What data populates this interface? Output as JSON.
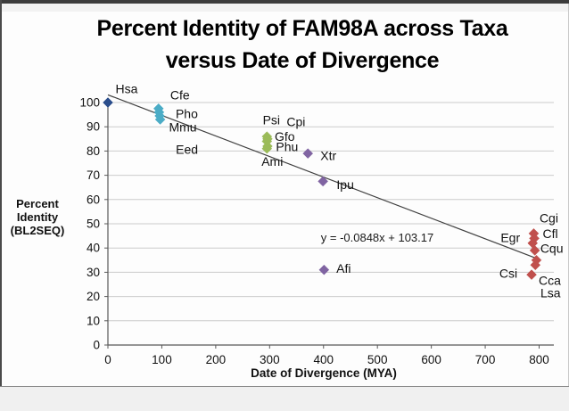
{
  "chart_data": {
    "type": "scatter",
    "title": "Percent Identity of FAM98A across Taxa versus Date of Divergence",
    "title_line1": "Percent Identity of FAM98A across Taxa",
    "title_line2": "versus Date of Divergence",
    "xlabel": "Date of Divergence (MYA)",
    "ylabel": "Percent Identity (BL2SEQ)",
    "ylabel_lines": [
      "Percent",
      "Identity",
      "(BL2SEQ)"
    ],
    "xlim": [
      0,
      800
    ],
    "ylim": [
      0,
      100
    ],
    "xticks": [
      0,
      100,
      200,
      300,
      400,
      500,
      600,
      700,
      800
    ],
    "yticks": [
      0,
      10,
      20,
      30,
      40,
      50,
      60,
      70,
      80,
      90,
      100
    ],
    "grid": "horizontal-only",
    "legend": "none",
    "colors": {
      "gridline": "#cccccc",
      "axis": "#595959",
      "trendline": "#3f3f3f",
      "label_text": "#1a1a1a"
    },
    "trendline": {
      "equation": "y = -0.0848x + 103.17",
      "slope": -0.0848,
      "intercept": 103.17,
      "x_start": 0,
      "x_end": 800
    },
    "series": [
      {
        "color": "#2B4E8C",
        "points": [
          {
            "label": "Hsa",
            "x": 0,
            "y": 100,
            "label_dx": 21,
            "label_dy": -15
          }
        ]
      },
      {
        "color": "#4BACC6",
        "points": [
          {
            "label": "Cfe",
            "x": 94,
            "y": 97.5,
            "label_dx": 24,
            "label_dy": -15
          },
          {
            "label": "Pho",
            "x": 95,
            "y": 96,
            "label_dx": 31,
            "label_dy": 2
          },
          {
            "label": "Mmu",
            "x": 96,
            "y": 94.5,
            "label_dx": 26,
            "label_dy": 13
          },
          {
            "label": "Eed",
            "x": 97,
            "y": 93,
            "label_dx": 30,
            "label_dy": 34
          }
        ]
      },
      {
        "color": "#9BBB59",
        "points": [
          {
            "label": "Psi",
            "x": 295,
            "y": 86,
            "label_dx": 5,
            "label_dy": -18
          },
          {
            "label": "Cpi",
            "x": 296,
            "y": 85,
            "label_dx": 32,
            "label_dy": -19
          },
          {
            "label": "Gfo",
            "x": 295,
            "y": 84,
            "label_dx": 20,
            "label_dy": -5
          },
          {
            "label": "Phu",
            "x": 296,
            "y": 82,
            "label_dx": 22,
            "label_dy": 1
          },
          {
            "label": "Ami",
            "x": 295,
            "y": 81,
            "label_dx": 6,
            "label_dy": 15
          }
        ]
      },
      {
        "color": "#8064A2",
        "points": [
          {
            "label": "Xtr",
            "x": 371,
            "y": 79,
            "label_dx": 23,
            "label_dy": 3
          },
          {
            "label": "Ipu",
            "x": 399,
            "y": 67.5,
            "label_dx": 25,
            "label_dy": 4
          },
          {
            "label": "Afi",
            "x": 401,
            "y": 31,
            "label_dx": 22,
            "label_dy": -1
          }
        ]
      },
      {
        "color": "#C0504D",
        "points": [
          {
            "label": "Cgi",
            "x": 790,
            "y": 46,
            "label_dx": 17,
            "label_dy": -17
          },
          {
            "label": "Cfl",
            "x": 791,
            "y": 44,
            "label_dx": 18,
            "label_dy": -5
          },
          {
            "label": "Egr",
            "x": 788,
            "y": 42,
            "label_dx": -25,
            "label_dy": -6
          },
          {
            "label": "Cqu",
            "x": 792,
            "y": 39,
            "label_dx": 19,
            "label_dy": -2
          },
          {
            "label": "Cca",
            "x": 795,
            "y": 35,
            "label_dx": 15,
            "label_dy": 23
          },
          {
            "label": "Lsa",
            "x": 793,
            "y": 33,
            "label_dx": 17,
            "label_dy": 32
          },
          {
            "label": "Csi",
            "x": 786,
            "y": 29,
            "label_dx": -26,
            "label_dy": -1
          }
        ]
      }
    ]
  }
}
